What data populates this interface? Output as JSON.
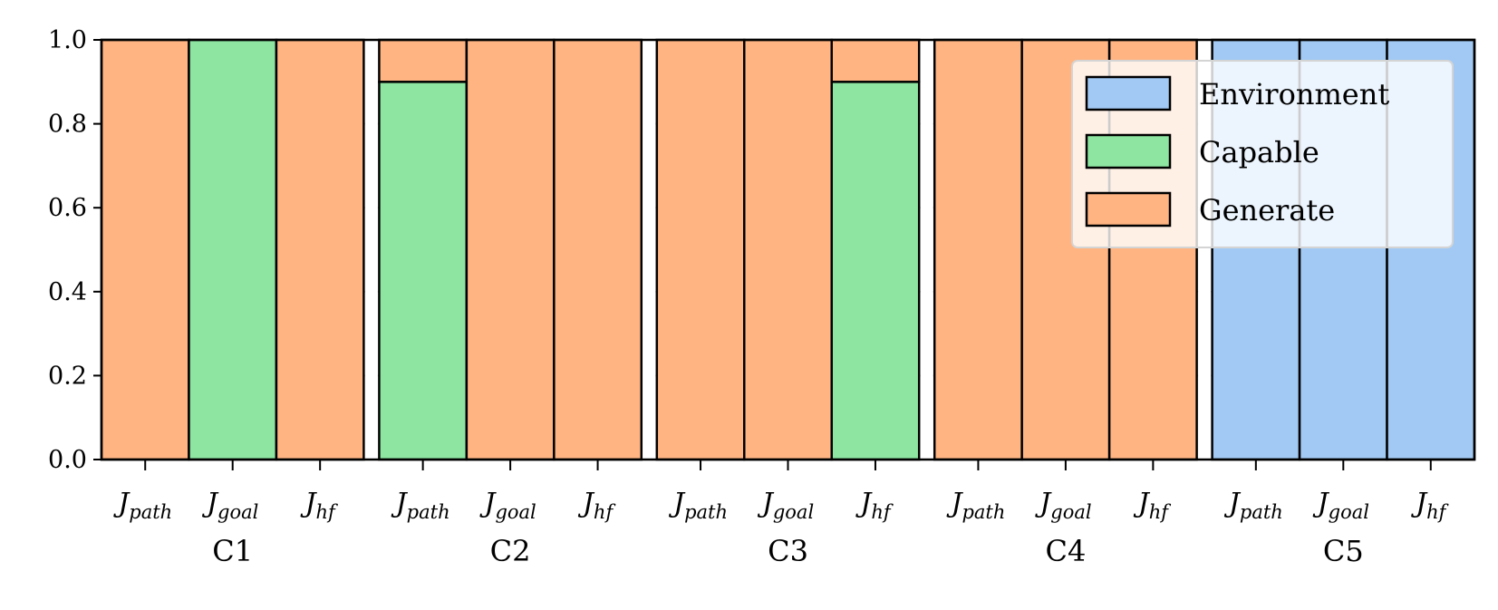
{
  "chart_data": {
    "type": "bar",
    "stacked": true,
    "groups": [
      "C1",
      "C2",
      "C3",
      "C4",
      "C5"
    ],
    "bar_labels": [
      {
        "main": "J",
        "sub": "path"
      },
      {
        "main": "J",
        "sub": "goal"
      },
      {
        "main": "J",
        "sub": "hf"
      }
    ],
    "series": [
      {
        "name": "Environment",
        "color": "#a1c9f4",
        "values": [
          [
            0,
            0,
            0
          ],
          [
            0,
            0,
            0
          ],
          [
            0,
            0,
            0
          ],
          [
            0,
            0,
            0
          ],
          [
            1.0,
            1.0,
            1.0
          ]
        ]
      },
      {
        "name": "Capable",
        "color": "#8de5a1",
        "values": [
          [
            0,
            1.0,
            0
          ],
          [
            0.9,
            0,
            0
          ],
          [
            0,
            0,
            0.9
          ],
          [
            0,
            0,
            0
          ],
          [
            0,
            0,
            0
          ]
        ]
      },
      {
        "name": "Generate",
        "color": "#ffb482",
        "values": [
          [
            1.0,
            0,
            1.0
          ],
          [
            0.1,
            1.0,
            1.0
          ],
          [
            1.0,
            1.0,
            0.1
          ],
          [
            1.0,
            1.0,
            1.0
          ],
          [
            0,
            0,
            0
          ]
        ]
      }
    ],
    "stack_order": [
      "Environment",
      "Capable",
      "Generate"
    ],
    "legend_order": [
      "Environment",
      "Capable",
      "Generate"
    ],
    "legend_placement": "top-right",
    "ylim": [
      0,
      1.0
    ],
    "yticks": [
      "0.0",
      "0.2",
      "0.4",
      "0.6",
      "0.8",
      "1.0"
    ],
    "grid": "horizontal dashed",
    "title": "",
    "xlabel": "",
    "ylabel": ""
  }
}
